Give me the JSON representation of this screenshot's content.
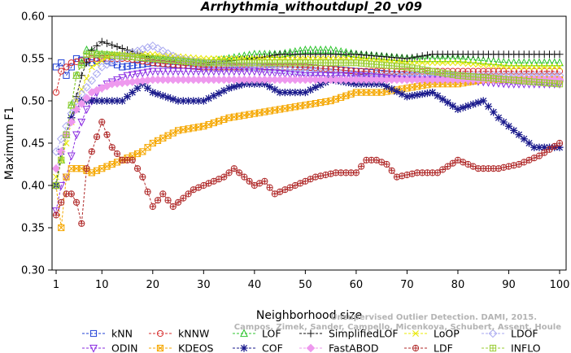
{
  "chart_data": {
    "type": "line",
    "title": "Arrhythmia_withoutdupl_20_v09",
    "xlabel": "Neighborhood size",
    "ylabel": "Maximum F1",
    "xlim": [
      1,
      100
    ],
    "ylim": [
      0.3,
      0.6
    ],
    "xticks": [
      1,
      10,
      20,
      30,
      40,
      50,
      60,
      70,
      80,
      90,
      100
    ],
    "yticks": [
      0.3,
      0.35,
      0.4,
      0.45,
      0.5,
      0.55,
      0.6
    ],
    "ytick_labels": [
      "0.30",
      "0.35",
      "0.40",
      "0.45",
      "0.50",
      "0.55",
      "0.60"
    ],
    "grid": false,
    "legend_position": "bottom",
    "watermark": [
      "Unsupervised Outlier Detection. DAMI, 2015.",
      "Campos, Zimek, Sander, Campello, Micenkova, Schubert, Assent, Houle"
    ],
    "series": [
      {
        "name": "kNN",
        "color": "#1f3fd6",
        "marker": "square",
        "keypoints": [
          [
            1,
            0.54
          ],
          [
            2,
            0.545
          ],
          [
            3,
            0.53
          ],
          [
            5,
            0.55
          ],
          [
            8,
            0.545
          ],
          [
            10,
            0.55
          ],
          [
            14,
            0.54
          ],
          [
            20,
            0.545
          ],
          [
            30,
            0.54
          ],
          [
            40,
            0.54
          ],
          [
            50,
            0.54
          ],
          [
            60,
            0.535
          ],
          [
            70,
            0.53
          ],
          [
            80,
            0.53
          ],
          [
            90,
            0.525
          ],
          [
            100,
            0.525
          ]
        ]
      },
      {
        "name": "kNNW",
        "color": "#d62c2c",
        "marker": "circle",
        "keypoints": [
          [
            1,
            0.51
          ],
          [
            2,
            0.535
          ],
          [
            4,
            0.545
          ],
          [
            8,
            0.55
          ],
          [
            15,
            0.55
          ],
          [
            20,
            0.545
          ],
          [
            30,
            0.54
          ],
          [
            40,
            0.54
          ],
          [
            50,
            0.54
          ],
          [
            60,
            0.535
          ],
          [
            70,
            0.535
          ],
          [
            80,
            0.535
          ],
          [
            90,
            0.535
          ],
          [
            100,
            0.535
          ]
        ]
      },
      {
        "name": "LOF",
        "color": "#2ec42e",
        "marker": "triangle-up",
        "keypoints": [
          [
            1,
            0.4
          ],
          [
            3,
            0.46
          ],
          [
            5,
            0.53
          ],
          [
            7,
            0.56
          ],
          [
            10,
            0.555
          ],
          [
            20,
            0.55
          ],
          [
            30,
            0.545
          ],
          [
            40,
            0.555
          ],
          [
            45,
            0.555
          ],
          [
            50,
            0.56
          ],
          [
            55,
            0.56
          ],
          [
            60,
            0.555
          ],
          [
            70,
            0.55
          ],
          [
            80,
            0.55
          ],
          [
            90,
            0.545
          ],
          [
            100,
            0.545
          ]
        ]
      },
      {
        "name": "SimplifiedLOF",
        "color": "#111111",
        "marker": "plus",
        "keypoints": [
          [
            1,
            0.4
          ],
          [
            2,
            0.44
          ],
          [
            4,
            0.48
          ],
          [
            6,
            0.53
          ],
          [
            8,
            0.56
          ],
          [
            10,
            0.57
          ],
          [
            15,
            0.56
          ],
          [
            20,
            0.55
          ],
          [
            30,
            0.545
          ],
          [
            40,
            0.55
          ],
          [
            45,
            0.555
          ],
          [
            50,
            0.555
          ],
          [
            60,
            0.555
          ],
          [
            70,
            0.55
          ],
          [
            75,
            0.555
          ],
          [
            80,
            0.555
          ],
          [
            90,
            0.555
          ],
          [
            100,
            0.555
          ]
        ]
      },
      {
        "name": "LoOP",
        "color": "#e8e800",
        "marker": "x",
        "keypoints": [
          [
            1,
            0.41
          ],
          [
            3,
            0.45
          ],
          [
            5,
            0.5
          ],
          [
            8,
            0.54
          ],
          [
            12,
            0.555
          ],
          [
            20,
            0.555
          ],
          [
            30,
            0.55
          ],
          [
            40,
            0.55
          ],
          [
            50,
            0.55
          ],
          [
            60,
            0.55
          ],
          [
            70,
            0.545
          ],
          [
            80,
            0.545
          ],
          [
            90,
            0.54
          ],
          [
            100,
            0.54
          ]
        ]
      },
      {
        "name": "LDOF",
        "color": "#a9a9f0",
        "marker": "diamond",
        "keypoints": [
          [
            1,
            0.44
          ],
          [
            5,
            0.5
          ],
          [
            10,
            0.54
          ],
          [
            15,
            0.555
          ],
          [
            20,
            0.565
          ],
          [
            25,
            0.55
          ],
          [
            30,
            0.545
          ],
          [
            40,
            0.54
          ],
          [
            50,
            0.535
          ],
          [
            60,
            0.53
          ],
          [
            70,
            0.53
          ],
          [
            80,
            0.53
          ],
          [
            90,
            0.53
          ],
          [
            100,
            0.53
          ]
        ]
      },
      {
        "name": "ODIN",
        "color": "#8a2be2",
        "marker": "triangle-down",
        "keypoints": [
          [
            1,
            0.37
          ],
          [
            2,
            0.4
          ],
          [
            3,
            0.41
          ],
          [
            5,
            0.46
          ],
          [
            7,
            0.49
          ],
          [
            9,
            0.51
          ],
          [
            11,
            0.52
          ],
          [
            15,
            0.53
          ],
          [
            20,
            0.535
          ],
          [
            30,
            0.535
          ],
          [
            40,
            0.535
          ],
          [
            50,
            0.53
          ],
          [
            60,
            0.53
          ],
          [
            70,
            0.525
          ],
          [
            80,
            0.525
          ],
          [
            90,
            0.52
          ],
          [
            100,
            0.52
          ]
        ]
      },
      {
        "name": "KDEOS",
        "color": "#f5a700",
        "marker": "square-x",
        "keypoints": [
          [
            1,
            0.4
          ],
          [
            2,
            0.35
          ],
          [
            3,
            0.41
          ],
          [
            4,
            0.42
          ],
          [
            6,
            0.42
          ],
          [
            8,
            0.415
          ],
          [
            10,
            0.42
          ],
          [
            14,
            0.43
          ],
          [
            18,
            0.44
          ],
          [
            20,
            0.45
          ],
          [
            25,
            0.465
          ],
          [
            30,
            0.47
          ],
          [
            35,
            0.48
          ],
          [
            40,
            0.485
          ],
          [
            45,
            0.49
          ],
          [
            50,
            0.495
          ],
          [
            55,
            0.5
          ],
          [
            60,
            0.51
          ],
          [
            65,
            0.51
          ],
          [
            70,
            0.515
          ],
          [
            75,
            0.52
          ],
          [
            80,
            0.52
          ],
          [
            85,
            0.525
          ],
          [
            90,
            0.525
          ],
          [
            100,
            0.525
          ]
        ]
      },
      {
        "name": "COF",
        "color": "#1a1a8c",
        "marker": "asterisk",
        "keypoints": [
          [
            1,
            0.4
          ],
          [
            2,
            0.44
          ],
          [
            4,
            0.48
          ],
          [
            6,
            0.5
          ],
          [
            8,
            0.5
          ],
          [
            10,
            0.5
          ],
          [
            14,
            0.5
          ],
          [
            18,
            0.52
          ],
          [
            20,
            0.51
          ],
          [
            25,
            0.5
          ],
          [
            30,
            0.5
          ],
          [
            35,
            0.515
          ],
          [
            38,
            0.52
          ],
          [
            42,
            0.52
          ],
          [
            45,
            0.51
          ],
          [
            50,
            0.51
          ],
          [
            55,
            0.525
          ],
          [
            60,
            0.52
          ],
          [
            65,
            0.52
          ],
          [
            70,
            0.505
          ],
          [
            75,
            0.51
          ],
          [
            80,
            0.49
          ],
          [
            85,
            0.5
          ],
          [
            88,
            0.48
          ],
          [
            92,
            0.46
          ],
          [
            95,
            0.445
          ],
          [
            100,
            0.445
          ]
        ]
      },
      {
        "name": "FastABOD",
        "color": "#ee99ee",
        "marker": "diamond-filled",
        "keypoints": [
          [
            1,
            0.42
          ],
          [
            3,
            0.46
          ],
          [
            5,
            0.49
          ],
          [
            8,
            0.51
          ],
          [
            12,
            0.52
          ],
          [
            20,
            0.525
          ],
          [
            30,
            0.525
          ],
          [
            40,
            0.525
          ],
          [
            50,
            0.525
          ],
          [
            60,
            0.525
          ],
          [
            70,
            0.525
          ],
          [
            80,
            0.525
          ],
          [
            90,
            0.525
          ],
          [
            100,
            0.525
          ]
        ]
      },
      {
        "name": "LDF",
        "color": "#b02a2a",
        "marker": "circle-plus",
        "keypoints": [
          [
            1,
            0.365
          ],
          [
            2,
            0.38
          ],
          [
            3,
            0.39
          ],
          [
            4,
            0.39
          ],
          [
            5,
            0.38
          ],
          [
            6,
            0.355
          ],
          [
            7,
            0.42
          ],
          [
            8,
            0.44
          ],
          [
            10,
            0.475
          ],
          [
            12,
            0.445
          ],
          [
            14,
            0.43
          ],
          [
            16,
            0.43
          ],
          [
            18,
            0.41
          ],
          [
            20,
            0.375
          ],
          [
            22,
            0.39
          ],
          [
            24,
            0.375
          ],
          [
            28,
            0.395
          ],
          [
            30,
            0.4
          ],
          [
            34,
            0.41
          ],
          [
            36,
            0.42
          ],
          [
            38,
            0.41
          ],
          [
            40,
            0.4
          ],
          [
            42,
            0.405
          ],
          [
            44,
            0.39
          ],
          [
            48,
            0.4
          ],
          [
            52,
            0.41
          ],
          [
            56,
            0.415
          ],
          [
            60,
            0.415
          ],
          [
            62,
            0.43
          ],
          [
            64,
            0.43
          ],
          [
            66,
            0.425
          ],
          [
            68,
            0.41
          ],
          [
            72,
            0.415
          ],
          [
            76,
            0.415
          ],
          [
            80,
            0.43
          ],
          [
            84,
            0.42
          ],
          [
            88,
            0.42
          ],
          [
            92,
            0.425
          ],
          [
            96,
            0.435
          ],
          [
            100,
            0.45
          ]
        ]
      },
      {
        "name": "INFLO",
        "color": "#99cc33",
        "marker": "square-plus",
        "keypoints": [
          [
            1,
            0.4
          ],
          [
            3,
            0.46
          ],
          [
            5,
            0.53
          ],
          [
            7,
            0.555
          ],
          [
            10,
            0.555
          ],
          [
            20,
            0.55
          ],
          [
            30,
            0.545
          ],
          [
            40,
            0.545
          ],
          [
            50,
            0.545
          ],
          [
            60,
            0.545
          ],
          [
            70,
            0.54
          ],
          [
            80,
            0.53
          ],
          [
            90,
            0.525
          ],
          [
            100,
            0.52
          ]
        ]
      }
    ]
  }
}
